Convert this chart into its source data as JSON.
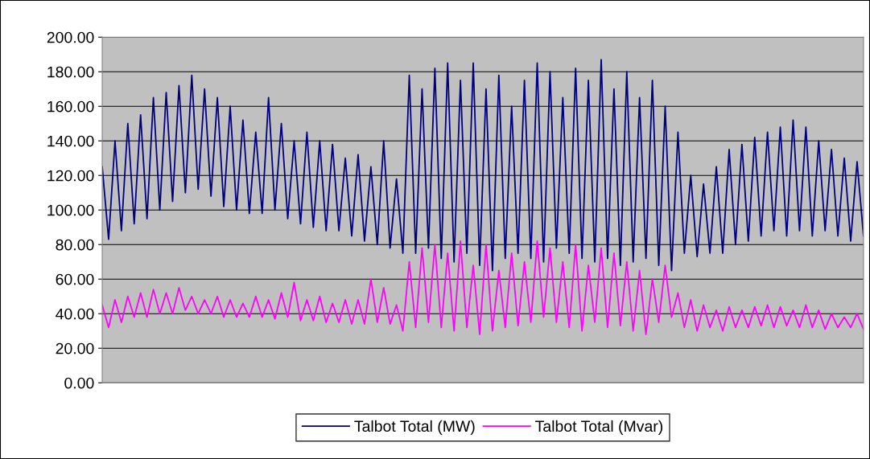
{
  "chart_data": {
    "type": "line",
    "categories": [
      null,
      null,
      null,
      null,
      null,
      null,
      null,
      null,
      null,
      null,
      null,
      null,
      null,
      null,
      null,
      null,
      null,
      null,
      null,
      null,
      null,
      null,
      null,
      null,
      null,
      null,
      null,
      null,
      null,
      null,
      null,
      null,
      null,
      null,
      null,
      null,
      null,
      null,
      null,
      null,
      null,
      null,
      null,
      null,
      null,
      null,
      null,
      null,
      null,
      null,
      null,
      null,
      null,
      null,
      null,
      null,
      null,
      null,
      null,
      null,
      null,
      null,
      null,
      null,
      null,
      null,
      null,
      null,
      null,
      null,
      null,
      null,
      null,
      null,
      null,
      null,
      null,
      null,
      null,
      null,
      null,
      null,
      null,
      null,
      null,
      null,
      null,
      null,
      null,
      null,
      null,
      null,
      null,
      null,
      null,
      null,
      null,
      null,
      null,
      null,
      null,
      null,
      null,
      null,
      null,
      null,
      null,
      null,
      null,
      null,
      null,
      null,
      null,
      null,
      null,
      null,
      null,
      null,
      null,
      null
    ],
    "series": [
      {
        "name": "Talbot Total (MW)",
        "color": "#000080",
        "values": [
          125,
          83,
          140,
          88,
          150,
          92,
          155,
          95,
          165,
          100,
          168,
          105,
          172,
          110,
          178,
          112,
          170,
          108,
          165,
          102,
          160,
          100,
          152,
          98,
          145,
          98,
          165,
          100,
          150,
          95,
          140,
          92,
          145,
          90,
          140,
          88,
          138,
          88,
          130,
          85,
          132,
          82,
          125,
          80,
          140,
          78,
          118,
          75,
          178,
          75,
          170,
          78,
          182,
          72,
          185,
          70,
          175,
          75,
          185,
          68,
          170,
          65,
          178,
          72,
          160,
          75,
          175,
          72,
          185,
          70,
          180,
          78,
          165,
          75,
          182,
          72,
          175,
          70,
          187,
          72,
          170,
          68,
          180,
          70,
          165,
          72,
          175,
          68,
          160,
          65,
          145,
          75,
          120,
          73,
          115,
          75,
          125,
          75,
          135,
          80,
          138,
          82,
          142,
          85,
          145,
          88,
          148,
          85,
          152,
          88,
          148,
          85,
          140,
          88,
          135,
          85,
          130,
          82,
          128,
          85
        ]
      },
      {
        "name": "Talbot Total (Mvar)",
        "color": "#ff00ff",
        "values": [
          45,
          32,
          48,
          35,
          50,
          38,
          52,
          38,
          54,
          40,
          52,
          40,
          55,
          42,
          50,
          40,
          48,
          40,
          50,
          38,
          48,
          38,
          46,
          38,
          50,
          38,
          48,
          37,
          52,
          38,
          58,
          36,
          48,
          36,
          50,
          35,
          46,
          35,
          48,
          34,
          48,
          34,
          60,
          35,
          55,
          34,
          45,
          30,
          70,
          32,
          78,
          35,
          80,
          32,
          75,
          30,
          82,
          32,
          68,
          28,
          80,
          30,
          65,
          32,
          75,
          33,
          70,
          35,
          82,
          38,
          78,
          35,
          70,
          32,
          80,
          30,
          68,
          35,
          78,
          32,
          75,
          33,
          70,
          30,
          65,
          28,
          60,
          35,
          68,
          38,
          52,
          32,
          48,
          30,
          45,
          32,
          42,
          30,
          44,
          32,
          42,
          32,
          44,
          33,
          45,
          32,
          44,
          33,
          42,
          32,
          45,
          32,
          42,
          31,
          40,
          32,
          38,
          32,
          40,
          31
        ]
      }
    ],
    "ylim": [
      0,
      200
    ],
    "yticks": [
      {
        "value": 0,
        "label": "0.00"
      },
      {
        "value": 20,
        "label": "20.00"
      },
      {
        "value": 40,
        "label": "40.00"
      },
      {
        "value": 60,
        "label": "60.00"
      },
      {
        "value": 80,
        "label": "80.00"
      },
      {
        "value": 100,
        "label": "100.00"
      },
      {
        "value": 120,
        "label": "120.00"
      },
      {
        "value": 140,
        "label": "140.00"
      },
      {
        "value": 160,
        "label": "160.00"
      },
      {
        "value": 180,
        "label": "180.00"
      },
      {
        "value": 200,
        "label": "200.00"
      }
    ],
    "grid": "y",
    "legend": "bottom",
    "tick_labels": "y",
    "marker": "none",
    "line_style": "solid"
  }
}
